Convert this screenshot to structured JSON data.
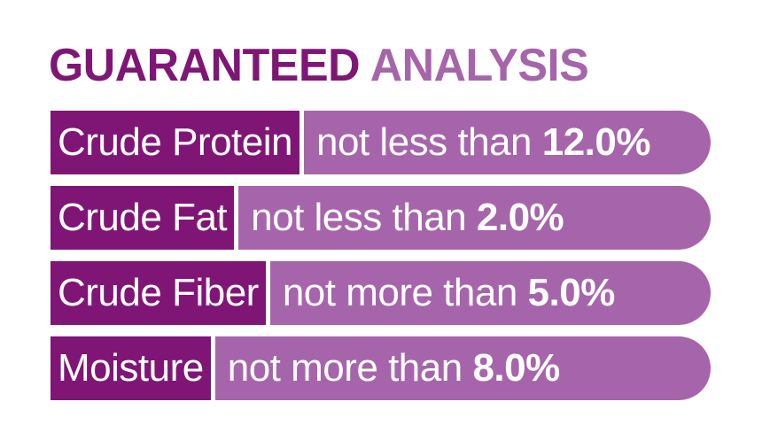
{
  "heading": {
    "part1": "GUARANTEED",
    "part2": "ANALYSIS"
  },
  "rows": [
    {
      "label": "Crude Protein",
      "qualifier": "not less than",
      "amount": "12.0%"
    },
    {
      "label": "Crude Fat",
      "qualifier": "not less than",
      "amount": "2.0%"
    },
    {
      "label": "Crude Fiber",
      "qualifier": "not more than",
      "amount": "5.0%"
    },
    {
      "label": "Moisture",
      "qualifier": "not more than",
      "amount": "8.0%"
    }
  ],
  "colors": {
    "dark": "#7f1676",
    "light": "#a665ab"
  }
}
